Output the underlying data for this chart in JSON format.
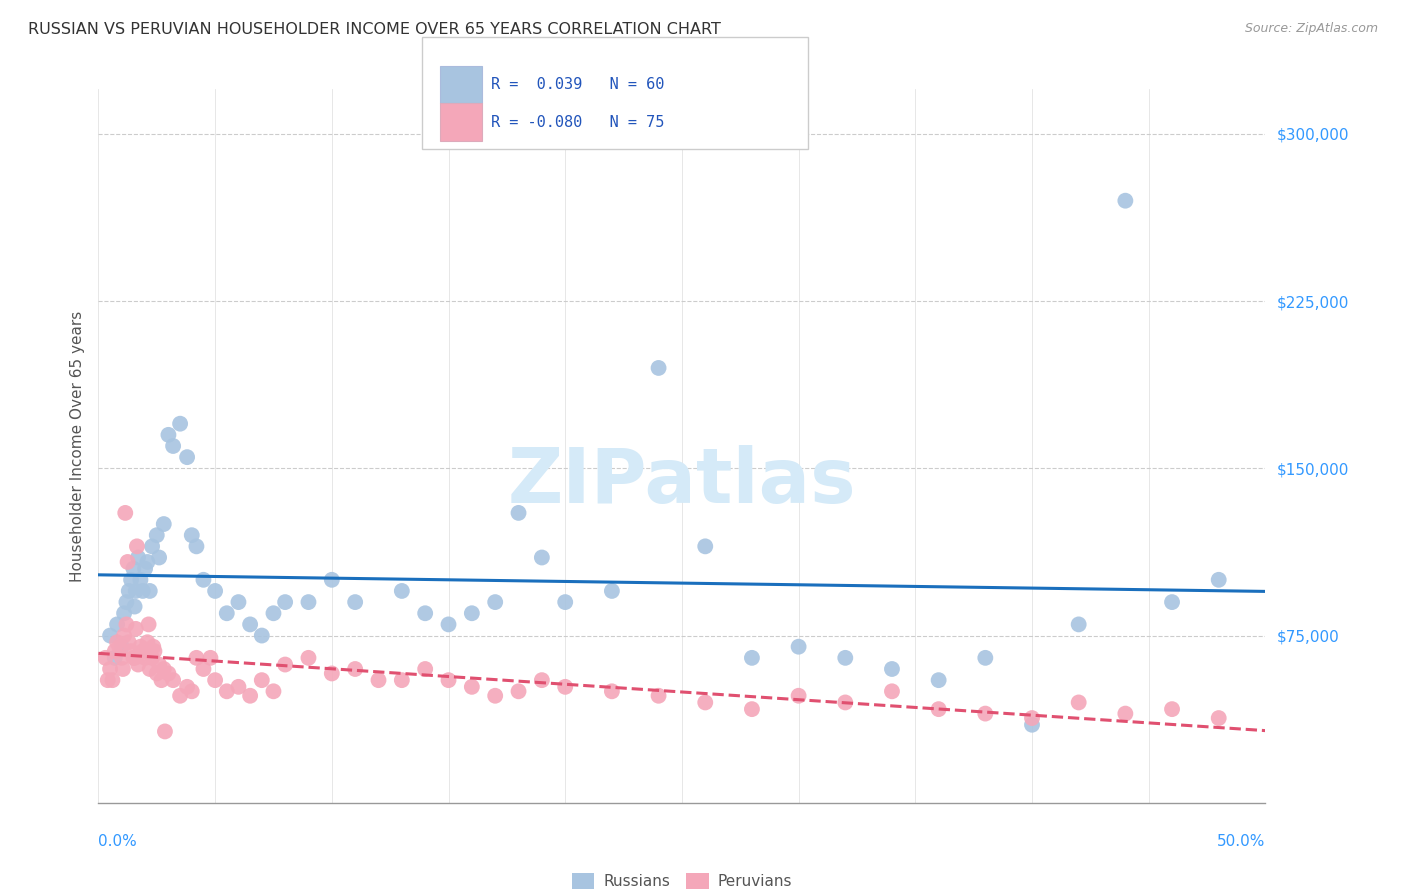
{
  "title": "RUSSIAN VS PERUVIAN HOUSEHOLDER INCOME OVER 65 YEARS CORRELATION CHART",
  "source": "Source: ZipAtlas.com",
  "ylabel": "Householder Income Over 65 years",
  "xlim": [
    0.0,
    50.0
  ],
  "ylim": [
    0,
    320000
  ],
  "ytick_vals": [
    75000,
    150000,
    225000,
    300000
  ],
  "ytick_labels": [
    "$75,000",
    "$150,000",
    "$225,000",
    "$300,000"
  ],
  "background_color": "#ffffff",
  "russian_fill": "#a8c4e0",
  "peruvian_fill": "#f4a7b9",
  "russian_line": "#1a6fbd",
  "peruvian_line": "#e05070",
  "grid_color": "#cccccc",
  "tick_color": "#3399ff",
  "title_color": "#333333",
  "source_color": "#999999",
  "watermark": "ZIPatlas",
  "watermark_color": "#d5eaf8",
  "legend_r_rus": "R =  0.039",
  "legend_n_rus": "N = 60",
  "legend_r_per": "R = -0.080",
  "legend_n_per": "N = 75",
  "russians_x": [
    0.5,
    0.7,
    0.8,
    1.0,
    1.1,
    1.2,
    1.3,
    1.4,
    1.5,
    1.55,
    1.6,
    1.7,
    1.8,
    1.9,
    2.0,
    2.1,
    2.2,
    2.3,
    2.5,
    2.6,
    2.8,
    3.0,
    3.2,
    3.5,
    3.8,
    4.0,
    4.2,
    4.5,
    5.0,
    5.5,
    6.0,
    6.5,
    7.0,
    7.5,
    8.0,
    9.0,
    10.0,
    11.0,
    13.0,
    14.0,
    15.0,
    16.0,
    17.0,
    18.0,
    19.0,
    20.0,
    22.0,
    24.0,
    26.0,
    28.0,
    30.0,
    32.0,
    34.0,
    36.0,
    38.0,
    40.0,
    42.0,
    44.0,
    46.0,
    48.0
  ],
  "russians_y": [
    75000,
    65000,
    80000,
    70000,
    85000,
    90000,
    95000,
    100000,
    105000,
    88000,
    95000,
    110000,
    100000,
    95000,
    105000,
    108000,
    95000,
    115000,
    120000,
    110000,
    125000,
    165000,
    160000,
    170000,
    155000,
    120000,
    115000,
    100000,
    95000,
    85000,
    90000,
    80000,
    75000,
    85000,
    90000,
    90000,
    100000,
    90000,
    95000,
    85000,
    80000,
    85000,
    90000,
    130000,
    110000,
    90000,
    95000,
    195000,
    115000,
    65000,
    70000,
    65000,
    60000,
    55000,
    65000,
    35000,
    80000,
    270000,
    90000,
    100000
  ],
  "peruvians_x": [
    0.3,
    0.5,
    0.6,
    0.7,
    0.8,
    0.9,
    1.0,
    1.1,
    1.2,
    1.3,
    1.4,
    1.5,
    1.6,
    1.7,
    1.8,
    1.9,
    2.0,
    2.1,
    2.2,
    2.3,
    2.4,
    2.5,
    2.6,
    2.7,
    2.8,
    3.0,
    3.2,
    3.5,
    3.8,
    4.0,
    4.2,
    4.5,
    5.0,
    5.5,
    6.0,
    6.5,
    7.0,
    7.5,
    8.0,
    9.0,
    10.0,
    11.0,
    12.0,
    13.0,
    14.0,
    15.0,
    16.0,
    17.0,
    18.0,
    19.0,
    20.0,
    22.0,
    24.0,
    26.0,
    28.0,
    30.0,
    32.0,
    34.0,
    36.0,
    38.0,
    40.0,
    42.0,
    44.0,
    46.0,
    48.0,
    0.4,
    1.05,
    1.15,
    1.25,
    1.55,
    1.65,
    2.15,
    2.35,
    2.85,
    4.8
  ],
  "peruvians_y": [
    65000,
    60000,
    55000,
    68000,
    72000,
    70000,
    65000,
    75000,
    80000,
    72000,
    68000,
    65000,
    78000,
    62000,
    70000,
    68000,
    65000,
    72000,
    60000,
    65000,
    68000,
    58000,
    62000,
    55000,
    60000,
    58000,
    55000,
    48000,
    52000,
    50000,
    65000,
    60000,
    55000,
    50000,
    52000,
    48000,
    55000,
    50000,
    62000,
    65000,
    58000,
    60000,
    55000,
    55000,
    60000,
    55000,
    52000,
    48000,
    50000,
    55000,
    52000,
    50000,
    48000,
    45000,
    42000,
    48000,
    45000,
    50000,
    42000,
    40000,
    38000,
    45000,
    40000,
    42000,
    38000,
    55000,
    60000,
    130000,
    108000,
    65000,
    115000,
    80000,
    70000,
    32000,
    65000
  ]
}
